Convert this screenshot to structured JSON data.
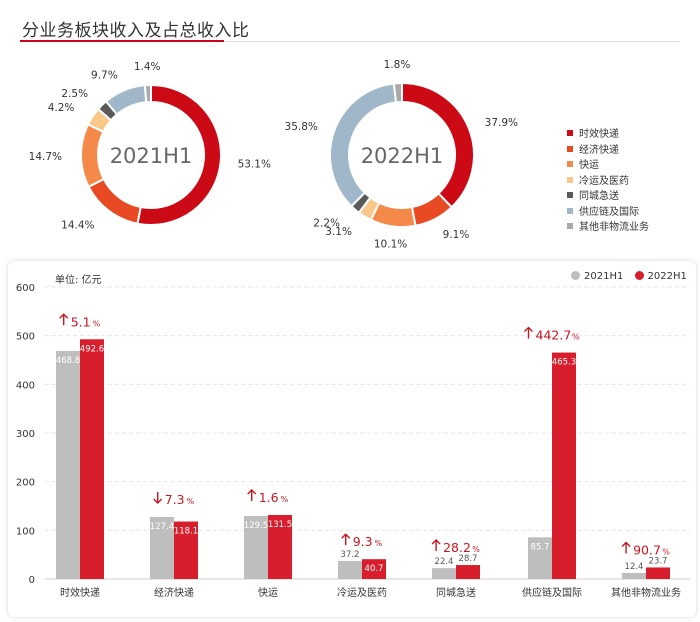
{
  "title": "分业务板块收入及占总收入比",
  "colors": {
    "accent": "#d0021b",
    "segments": [
      "#cc0a16",
      "#e84a23",
      "#f5894a",
      "#f9c88a",
      "#5a5a5a",
      "#9fb7c9",
      "#a9a9a9"
    ],
    "bar_2021": "#bebebe",
    "bar_2022": "#d81e2c",
    "growth_text": "#c8161d"
  },
  "chart_data": [
    {
      "type": "pie",
      "style": "donut",
      "center_label": "2021H1",
      "categories": [
        "时效快递",
        "经济快递",
        "快运",
        "冷运及医药",
        "同城急送",
        "供应链及国际",
        "其他非物流业务"
      ],
      "values": [
        53.1,
        14.4,
        14.7,
        4.2,
        2.5,
        9.7,
        1.4
      ],
      "labels": [
        "53.1%",
        "14.4%",
        "14.7%",
        "4.2%",
        "2.5%",
        "9.7%",
        "1.4%"
      ]
    },
    {
      "type": "pie",
      "style": "donut",
      "center_label": "2022H1",
      "categories": [
        "时效快递",
        "经济快递",
        "快运",
        "冷运及医药",
        "同城急送",
        "供应链及国际",
        "其他非物流业务"
      ],
      "values": [
        37.9,
        9.1,
        10.1,
        3.1,
        2.2,
        35.8,
        1.8
      ],
      "labels": [
        "37.9%",
        "9.1%",
        "10.1%",
        "3.1%",
        "2.2%",
        "35.8%",
        "1.8%"
      ]
    },
    {
      "type": "bar",
      "unit_label": "单位: 亿元",
      "categories": [
        "时效快递",
        "经济快递",
        "快运",
        "冷运及医药",
        "同城急送",
        "供应链及国际",
        "其他非物流业务"
      ],
      "series": [
        {
          "name": "2021H1",
          "values": [
            468.8,
            127.4,
            129.5,
            37.2,
            22.4,
            85.7,
            12.4
          ],
          "labels": [
            "468.8",
            "127.4",
            "129.5",
            "37.2",
            "22.4",
            "85.7",
            "12.4"
          ]
        },
        {
          "name": "2022H1",
          "values": [
            492.6,
            118.1,
            131.5,
            40.7,
            28.7,
            465.3,
            23.7
          ],
          "labels": [
            "492.6",
            "118.1",
            "131.5",
            "40.7",
            "28.7",
            "465.3",
            "23.7"
          ]
        }
      ],
      "growth": [
        {
          "arrow": "up",
          "value": "5.1",
          "unit": "%"
        },
        {
          "arrow": "down",
          "value": "7.3",
          "unit": "%"
        },
        {
          "arrow": "up",
          "value": "1.6",
          "unit": "%"
        },
        {
          "arrow": "up",
          "value": "9.3",
          "unit": "%"
        },
        {
          "arrow": "up",
          "value": "28.2",
          "unit": "%"
        },
        {
          "arrow": "up",
          "value": "442.7",
          "unit": "%"
        },
        {
          "arrow": "up",
          "value": "90.7",
          "unit": "%"
        }
      ],
      "yticks": [
        "0",
        "100",
        "200",
        "300",
        "400",
        "500",
        "600"
      ],
      "ylim": [
        0,
        600
      ],
      "grid": true,
      "legend_position": "top-right"
    }
  ]
}
